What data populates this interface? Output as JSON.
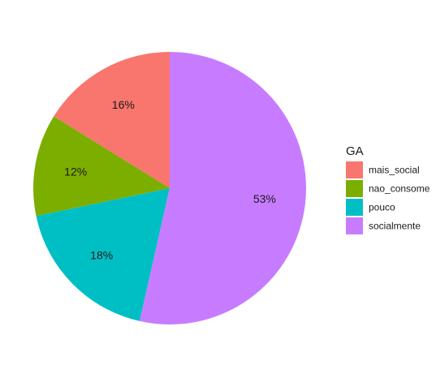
{
  "chart_data": {
    "type": "pie",
    "title": "",
    "categories": [
      "mais_social",
      "nao_consome",
      "pouco",
      "socialmente"
    ],
    "values": [
      16,
      12,
      18,
      53
    ],
    "labels": [
      "16%",
      "12%",
      "18%",
      "53%"
    ],
    "colors": [
      "#F8766D",
      "#7CAE00",
      "#00BFC4",
      "#C77CFF"
    ],
    "legend": {
      "title": "GA",
      "placement": "right"
    }
  }
}
